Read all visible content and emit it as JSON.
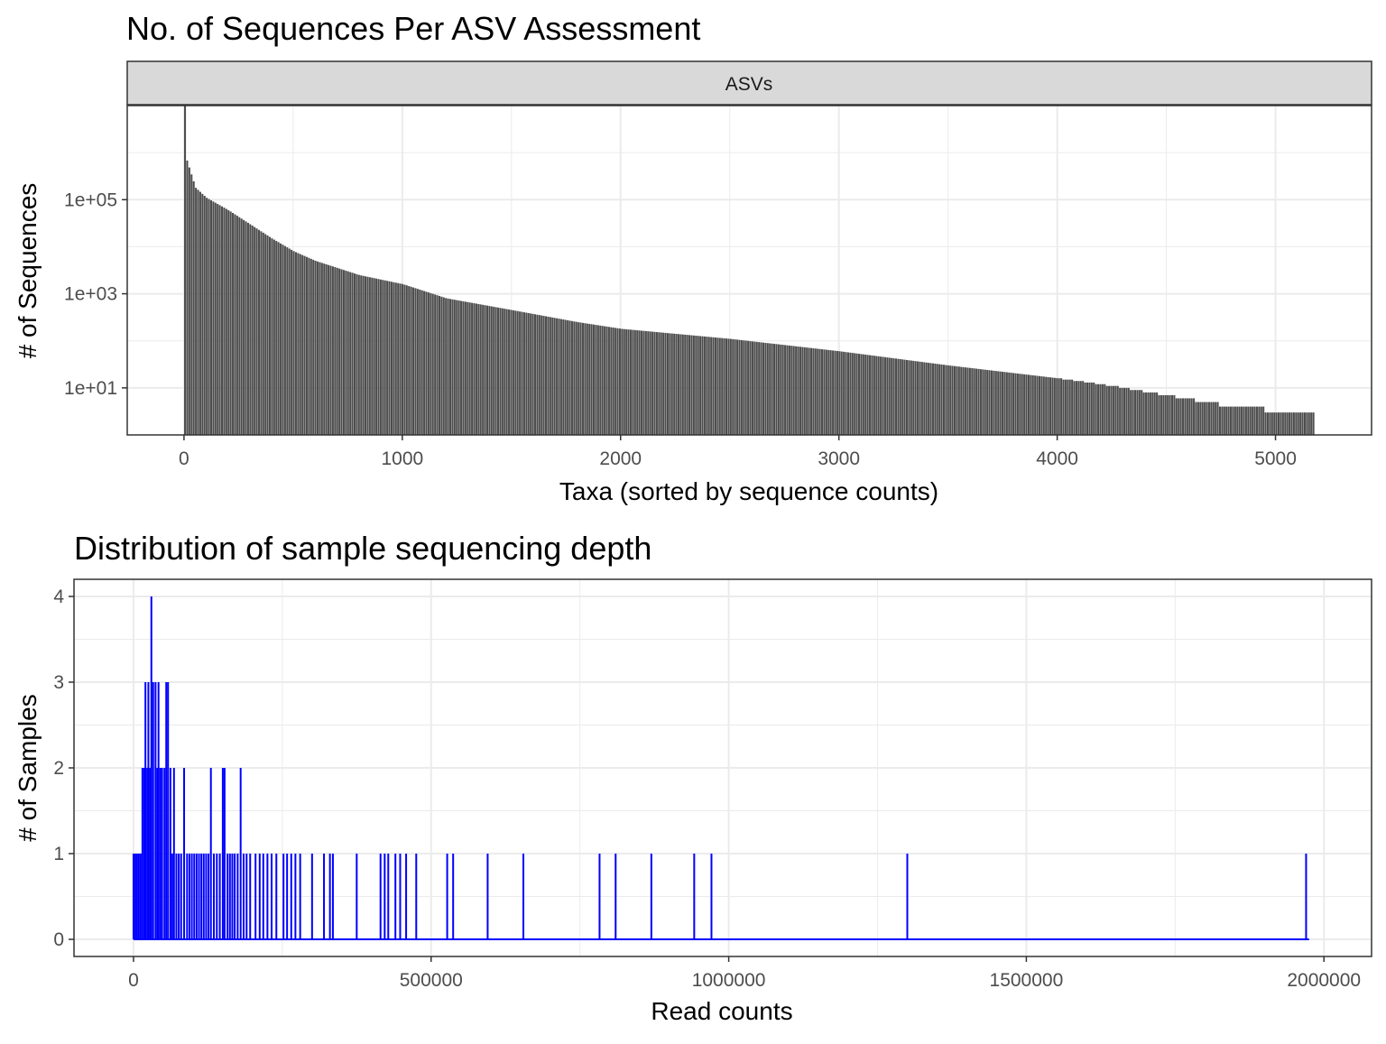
{
  "chart_data": [
    {
      "type": "bar",
      "title": "No. of Sequences Per ASV Assessment",
      "facet_label": "ASVs",
      "xlabel": "Taxa (sorted by sequence counts)",
      "ylabel": "# of Sequences",
      "x_ticks": [
        "0",
        "1000",
        "2000",
        "3000",
        "4000",
        "5000"
      ],
      "y_ticks": [
        "1e+01",
        "1e+03",
        "1e+05"
      ],
      "y_scale": "log10",
      "xlim": [
        -260,
        5440
      ],
      "ylim_log10": [
        -0.0,
        7.0
      ],
      "bar_base_log10": 0.0,
      "grid": true,
      "n_taxa": 5180,
      "sorted_counts_profile": [
        {
          "rank": 1,
          "count": 10000000
        },
        {
          "rank": 10,
          "count": 700000
        },
        {
          "rank": 50,
          "count": 180000
        },
        {
          "rank": 100,
          "count": 110000
        },
        {
          "rank": 200,
          "count": 60000
        },
        {
          "rank": 300,
          "count": 30000
        },
        {
          "rank": 400,
          "count": 15000
        },
        {
          "rank": 500,
          "count": 8000
        },
        {
          "rank": 600,
          "count": 5000
        },
        {
          "rank": 800,
          "count": 2500
        },
        {
          "rank": 1000,
          "count": 1600
        },
        {
          "rank": 1200,
          "count": 800
        },
        {
          "rank": 1500,
          "count": 450
        },
        {
          "rank": 1800,
          "count": 250
        },
        {
          "rank": 2000,
          "count": 180
        },
        {
          "rank": 2500,
          "count": 110
        },
        {
          "rank": 3000,
          "count": 60
        },
        {
          "rank": 3500,
          "count": 30
        },
        {
          "rank": 4000,
          "count": 16
        },
        {
          "rank": 4200,
          "count": 12
        },
        {
          "rank": 4500,
          "count": 7
        },
        {
          "rank": 4800,
          "count": 4
        },
        {
          "rank": 4900,
          "count": 4
        },
        {
          "rank": 5000,
          "count": 3
        },
        {
          "rank": 5180,
          "count": 3
        }
      ]
    },
    {
      "type": "bar",
      "title": "Distribution of sample sequencing depth",
      "xlabel": "Read counts",
      "ylabel": "# of Samples",
      "x_ticks": [
        "0",
        "500000",
        "1000000",
        "1500000",
        "2000000"
      ],
      "y_ticks": [
        "0",
        "1",
        "2",
        "3",
        "4"
      ],
      "xlim": [
        -100000,
        2080000
      ],
      "ylim": [
        -0.2,
        4.2
      ],
      "grid": true,
      "line_color": "#0000ff",
      "sample_counts": [
        {
          "x": 30000,
          "n": 4
        },
        {
          "x": 20000,
          "n": 3
        },
        {
          "x": 25000,
          "n": 3
        },
        {
          "x": 33000,
          "n": 3
        },
        {
          "x": 37000,
          "n": 3
        },
        {
          "x": 42000,
          "n": 3
        },
        {
          "x": 55000,
          "n": 3
        },
        {
          "x": 58000,
          "n": 3
        },
        {
          "x": 15000,
          "n": 2
        },
        {
          "x": 18000,
          "n": 2
        },
        {
          "x": 23000,
          "n": 2
        },
        {
          "x": 28000,
          "n": 2
        },
        {
          "x": 40000,
          "n": 2
        },
        {
          "x": 45000,
          "n": 2
        },
        {
          "x": 48000,
          "n": 2
        },
        {
          "x": 52000,
          "n": 2
        },
        {
          "x": 62000,
          "n": 2
        },
        {
          "x": 68000,
          "n": 2
        },
        {
          "x": 85000,
          "n": 2
        },
        {
          "x": 130000,
          "n": 2
        },
        {
          "x": 150000,
          "n": 2
        },
        {
          "x": 153000,
          "n": 2
        },
        {
          "x": 180000,
          "n": 2
        },
        {
          "x": 0,
          "n": 1
        },
        {
          "x": 3000,
          "n": 1
        },
        {
          "x": 6000,
          "n": 1
        },
        {
          "x": 9000,
          "n": 1
        },
        {
          "x": 12000,
          "n": 1
        },
        {
          "x": 65000,
          "n": 1
        },
        {
          "x": 72000,
          "n": 1
        },
        {
          "x": 76000,
          "n": 1
        },
        {
          "x": 80000,
          "n": 1
        },
        {
          "x": 90000,
          "n": 1
        },
        {
          "x": 94000,
          "n": 1
        },
        {
          "x": 98000,
          "n": 1
        },
        {
          "x": 102000,
          "n": 1
        },
        {
          "x": 106000,
          "n": 1
        },
        {
          "x": 110000,
          "n": 1
        },
        {
          "x": 114000,
          "n": 1
        },
        {
          "x": 118000,
          "n": 1
        },
        {
          "x": 122000,
          "n": 1
        },
        {
          "x": 126000,
          "n": 1
        },
        {
          "x": 135000,
          "n": 1
        },
        {
          "x": 140000,
          "n": 1
        },
        {
          "x": 145000,
          "n": 1
        },
        {
          "x": 158000,
          "n": 1
        },
        {
          "x": 162000,
          "n": 1
        },
        {
          "x": 166000,
          "n": 1
        },
        {
          "x": 170000,
          "n": 1
        },
        {
          "x": 175000,
          "n": 1
        },
        {
          "x": 185000,
          "n": 1
        },
        {
          "x": 190000,
          "n": 1
        },
        {
          "x": 196000,
          "n": 1
        },
        {
          "x": 205000,
          "n": 1
        },
        {
          "x": 212000,
          "n": 1
        },
        {
          "x": 218000,
          "n": 1
        },
        {
          "x": 225000,
          "n": 1
        },
        {
          "x": 232000,
          "n": 1
        },
        {
          "x": 240000,
          "n": 1
        },
        {
          "x": 252000,
          "n": 1
        },
        {
          "x": 258000,
          "n": 1
        },
        {
          "x": 265000,
          "n": 1
        },
        {
          "x": 272000,
          "n": 1
        },
        {
          "x": 280000,
          "n": 1
        },
        {
          "x": 300000,
          "n": 1
        },
        {
          "x": 320000,
          "n": 1
        },
        {
          "x": 330000,
          "n": 1
        },
        {
          "x": 335000,
          "n": 1
        },
        {
          "x": 375000,
          "n": 1
        },
        {
          "x": 415000,
          "n": 1
        },
        {
          "x": 422000,
          "n": 1
        },
        {
          "x": 428000,
          "n": 1
        },
        {
          "x": 440000,
          "n": 1
        },
        {
          "x": 448000,
          "n": 1
        },
        {
          "x": 458000,
          "n": 1
        },
        {
          "x": 475000,
          "n": 1
        },
        {
          "x": 527000,
          "n": 1
        },
        {
          "x": 537000,
          "n": 1
        },
        {
          "x": 595000,
          "n": 1
        },
        {
          "x": 655000,
          "n": 1
        },
        {
          "x": 783000,
          "n": 1
        },
        {
          "x": 810000,
          "n": 1
        },
        {
          "x": 870000,
          "n": 1
        },
        {
          "x": 942000,
          "n": 1
        },
        {
          "x": 971000,
          "n": 1
        },
        {
          "x": 1300000,
          "n": 1
        },
        {
          "x": 1970000,
          "n": 1
        }
      ]
    }
  ]
}
